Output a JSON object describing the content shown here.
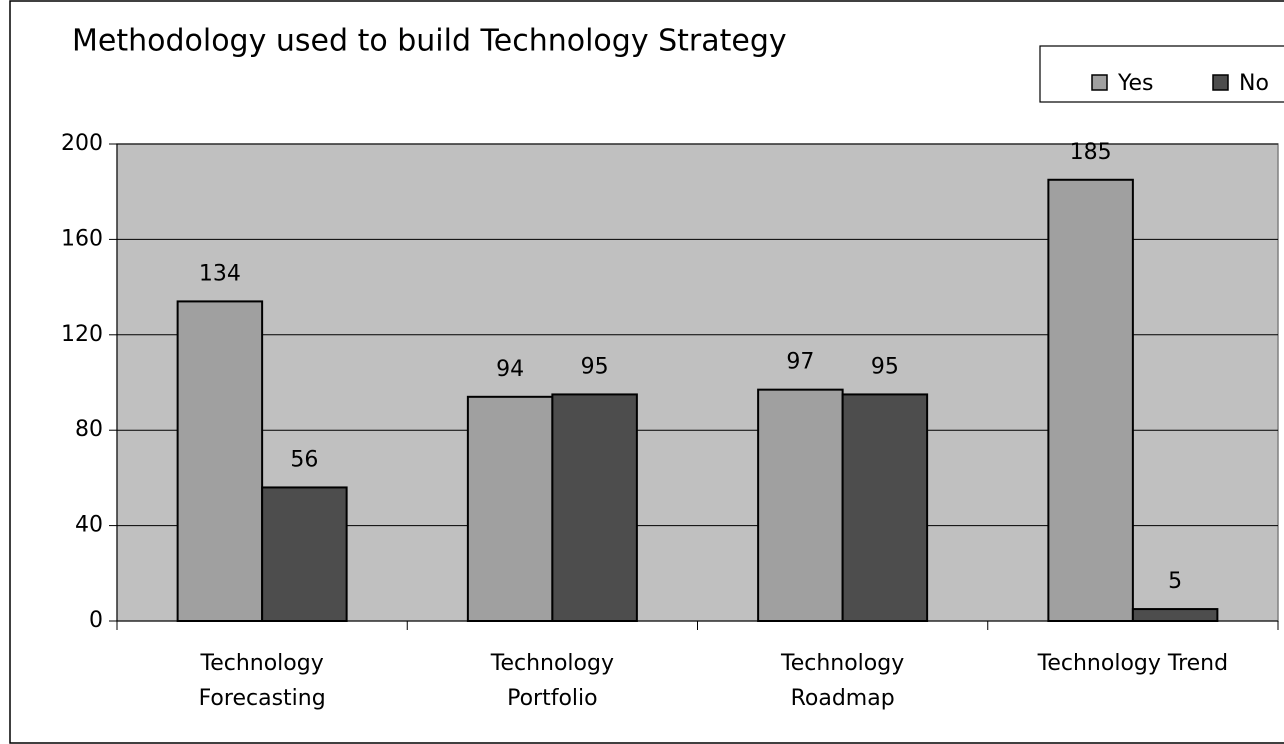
{
  "chart_data": {
    "type": "bar",
    "title": "Methodology used to build Technology Strategy",
    "categories": [
      [
        "Technology",
        "Forecasting"
      ],
      [
        "Technology",
        "Portfolio"
      ],
      [
        "Technology",
        "Roadmap"
      ],
      [
        "Technology Trend"
      ]
    ],
    "series": [
      {
        "name": "Yes",
        "color": "#a0a0a0",
        "values": [
          134,
          94,
          97,
          185
        ]
      },
      {
        "name": "No",
        "color": "#4d4d4d",
        "values": [
          56,
          95,
          95,
          5
        ]
      }
    ],
    "ylim": [
      0,
      200
    ],
    "yticks": [
      0,
      40,
      80,
      120,
      160,
      200
    ],
    "grid": true,
    "legend": "top-right"
  }
}
